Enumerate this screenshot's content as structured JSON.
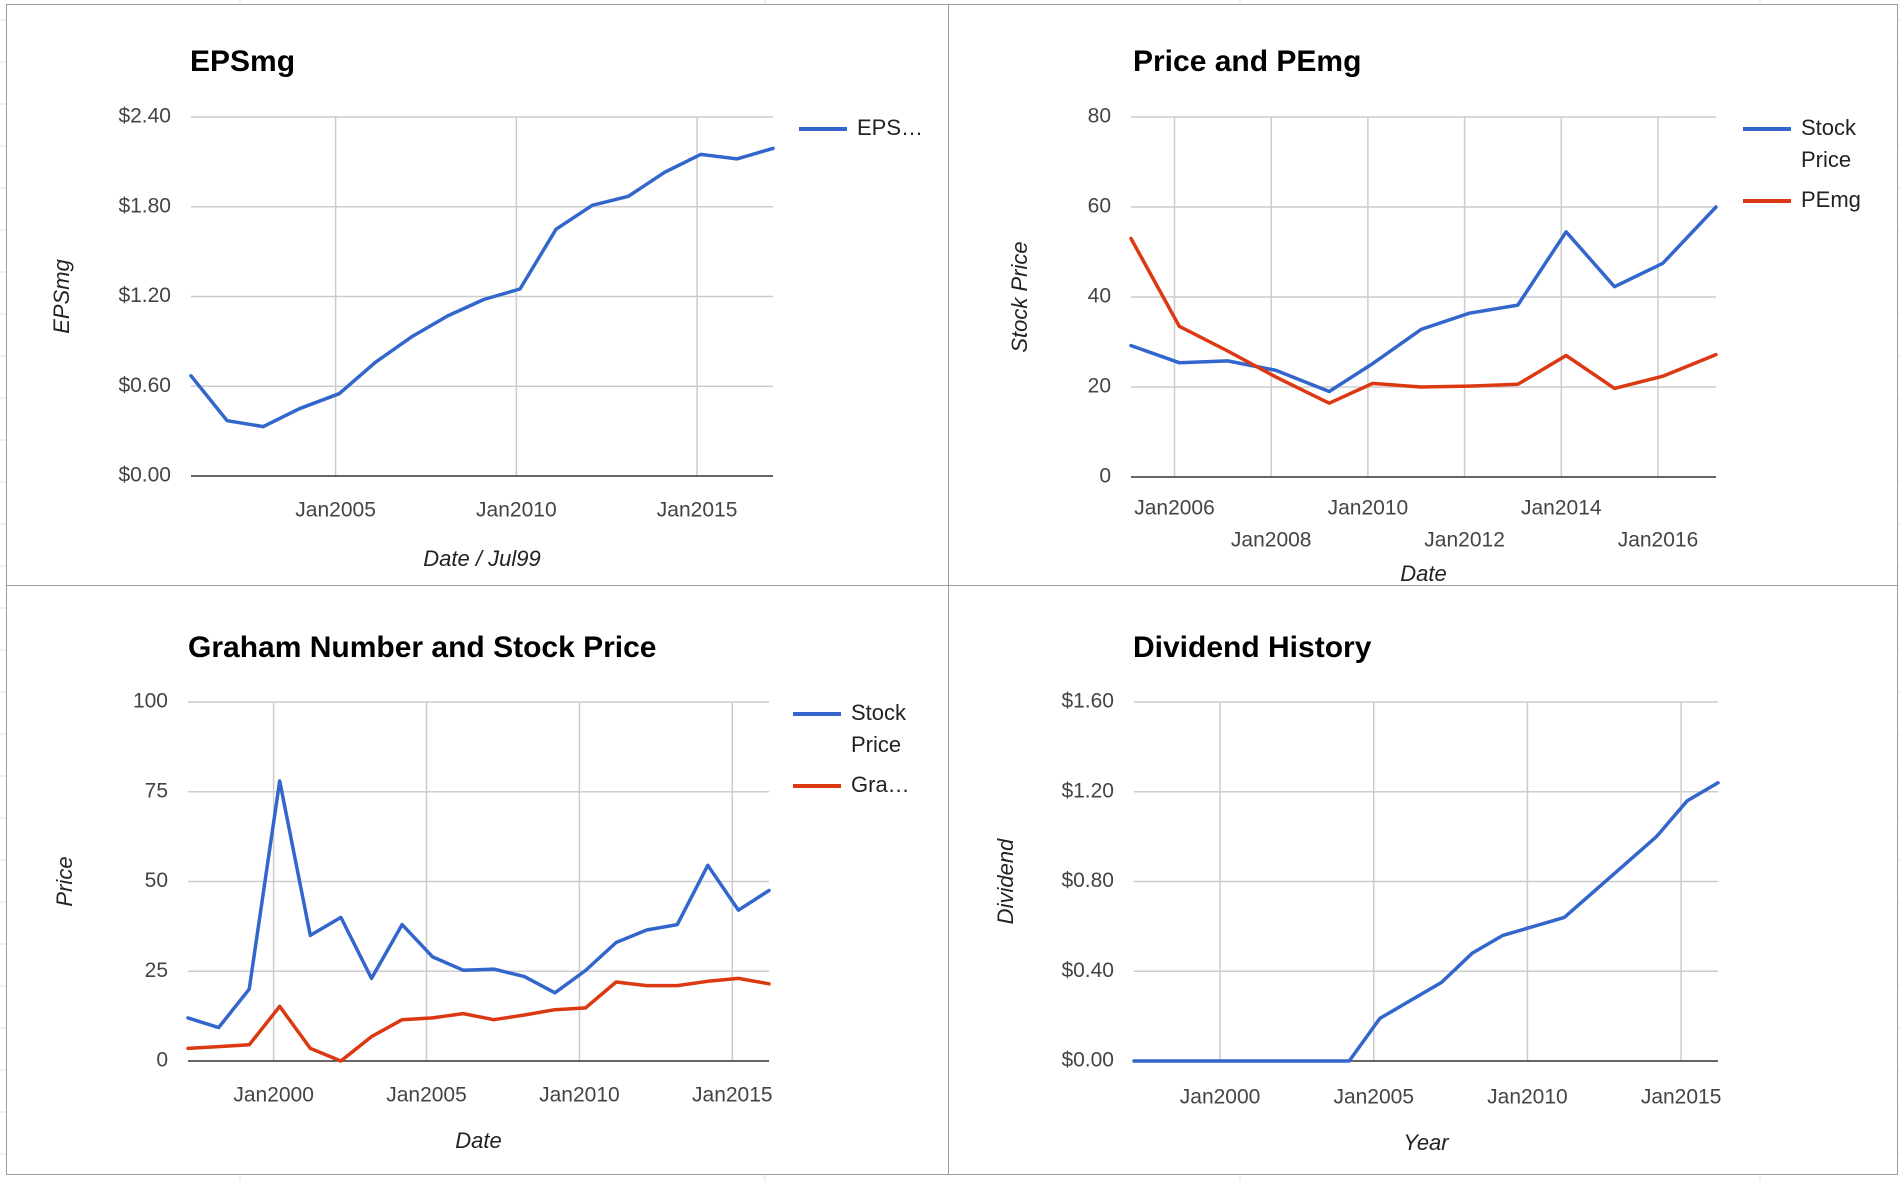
{
  "colors": {
    "blue": "#3366cc",
    "red": "#dc3912",
    "grid": "#cccccc",
    "baseline": "#333333"
  },
  "chart_data": [
    {
      "id": "epsmg",
      "type": "line",
      "title": "EPSmg",
      "xlabel": "Date / Jul99",
      "ylabel": "EPSmg",
      "xlim": [
        2001.0,
        2017.1
      ],
      "ylim": [
        0,
        2.4
      ],
      "yticks": [
        0,
        0.6,
        1.2,
        1.8,
        2.4
      ],
      "ytick_labels": [
        "$0.00",
        "$0.60",
        "$1.20",
        "$1.80",
        "$2.40"
      ],
      "xticks": [
        2005,
        2010,
        2015
      ],
      "xtick_labels": [
        "Jan2005",
        "Jan2010",
        "Jan2015"
      ],
      "legend": "right",
      "legend_entries": [
        "EPS…"
      ],
      "series": [
        {
          "name": "EPSmg",
          "color": "#3366cc",
          "x": [
            2001.0,
            2002.0,
            2003.0,
            2004.0,
            2005.1,
            2006.1,
            2007.1,
            2008.1,
            2009.1,
            2010.1,
            2011.1,
            2012.1,
            2013.1,
            2014.1,
            2015.1,
            2016.1,
            2017.1
          ],
          "y": [
            0.67,
            0.37,
            0.33,
            0.45,
            0.55,
            0.76,
            0.93,
            1.07,
            1.18,
            1.25,
            1.65,
            1.81,
            1.87,
            2.03,
            2.15,
            2.12,
            2.19
          ]
        }
      ]
    },
    {
      "id": "price-pemg",
      "type": "line",
      "title": "Price and PEmg",
      "xlabel": "Date",
      "ylabel": "Stock Price",
      "xlim": [
        2005.1,
        2017.2
      ],
      "ylim": [
        0,
        80
      ],
      "yticks": [
        0,
        20,
        40,
        60,
        80
      ],
      "ytick_labels": [
        "0",
        "20",
        "40",
        "60",
        "80"
      ],
      "xticks": [
        2006,
        2008,
        2010,
        2012,
        2014,
        2016
      ],
      "xtick_labels": [
        "Jan2006",
        "Jan2008",
        "Jan2010",
        "Jan2012",
        "Jan2014",
        "Jan2016"
      ],
      "legend": "right",
      "legend_entries": [
        [
          "Stock",
          "Price"
        ],
        [
          "PEmg"
        ]
      ],
      "series": [
        {
          "name": "Stock Price",
          "color": "#3366cc",
          "x": [
            2005.1,
            2006.1,
            2007.1,
            2008.1,
            2009.2,
            2010.1,
            2011.1,
            2012.1,
            2013.1,
            2014.1,
            2015.1,
            2016.1,
            2017.2
          ],
          "y": [
            29.2,
            25.4,
            25.8,
            23.7,
            19.0,
            25.2,
            32.8,
            36.4,
            38.2,
            54.5,
            42.3,
            47.5,
            60.0
          ]
        },
        {
          "name": "PEmg",
          "color": "#dc3912",
          "x": [
            2005.1,
            2006.1,
            2007.1,
            2008.1,
            2009.2,
            2010.1,
            2011.1,
            2012.1,
            2013.1,
            2014.1,
            2015.1,
            2016.1,
            2017.2
          ],
          "y": [
            53.0,
            33.5,
            28.0,
            22.2,
            16.4,
            20.8,
            20.0,
            20.2,
            20.6,
            27.0,
            19.7,
            22.4,
            27.2
          ]
        }
      ]
    },
    {
      "id": "graham",
      "type": "line",
      "title": "Graham Number and Stock Price",
      "xlabel": "Date",
      "ylabel": "Price",
      "xlim": [
        1997.2,
        2016.2
      ],
      "ylim": [
        0,
        100
      ],
      "yticks": [
        0,
        25,
        50,
        75,
        100
      ],
      "ytick_labels": [
        "0",
        "25",
        "50",
        "75",
        "100"
      ],
      "xticks": [
        2000,
        2005,
        2010,
        2015
      ],
      "xtick_labels": [
        "Jan2000",
        "Jan2005",
        "Jan2010",
        "Jan2015"
      ],
      "legend": "right",
      "legend_entries": [
        [
          "Stock",
          "Price"
        ],
        [
          "Gra…"
        ]
      ],
      "series": [
        {
          "name": "Stock Price",
          "color": "#3366cc",
          "x": [
            1997.2,
            1998.2,
            1999.2,
            2000.2,
            2001.2,
            2002.2,
            2003.2,
            2004.2,
            2005.2,
            2006.2,
            2007.2,
            2008.2,
            2009.2,
            2010.2,
            2011.2,
            2012.2,
            2013.2,
            2014.2,
            2015.2,
            2016.2
          ],
          "y": [
            12.0,
            9.3,
            20.0,
            78.0,
            35.0,
            40.0,
            23.0,
            38.0,
            29.0,
            25.3,
            25.6,
            23.5,
            19.0,
            25.2,
            33.0,
            36.5,
            38.0,
            54.5,
            42.0,
            47.5
          ]
        },
        {
          "name": "Graham Number",
          "color": "#dc3912",
          "x": [
            1997.2,
            1998.2,
            1999.2,
            2000.2,
            2001.2,
            2002.2,
            2003.2,
            2004.2,
            2005.2,
            2006.2,
            2007.2,
            2008.2,
            2009.2,
            2010.2,
            2011.2,
            2012.2,
            2013.2,
            2014.2,
            2015.2,
            2016.2
          ],
          "y": [
            3.5,
            4.0,
            4.5,
            15.2,
            3.5,
            0.0,
            6.8,
            11.5,
            12.0,
            13.2,
            11.5,
            12.8,
            14.3,
            14.8,
            22.0,
            21.0,
            21.0,
            22.2,
            23.0,
            21.5
          ]
        }
      ]
    },
    {
      "id": "dividend",
      "type": "line",
      "title": "Dividend History",
      "xlabel": "Year",
      "ylabel": "Dividend",
      "xlim": [
        1997.2,
        2016.2
      ],
      "ylim": [
        0,
        1.6
      ],
      "yticks": [
        0,
        0.4,
        0.8,
        1.2,
        1.6
      ],
      "ytick_labels": [
        "$0.00",
        "$0.40",
        "$0.80",
        "$1.20",
        "$1.60"
      ],
      "xticks": [
        2000,
        2005,
        2010,
        2015
      ],
      "xtick_labels": [
        "Jan2000",
        "Jan2005",
        "Jan2010",
        "Jan2015"
      ],
      "legend": "none",
      "legend_entries": [],
      "series": [
        {
          "name": "Dividend",
          "color": "#3366cc",
          "x": [
            1997.2,
            1998.2,
            1999.2,
            2000.2,
            2001.2,
            2002.2,
            2003.2,
            2004.2,
            2005.2,
            2006.2,
            2007.2,
            2008.2,
            2009.2,
            2010.2,
            2011.2,
            2012.2,
            2013.2,
            2014.2,
            2015.2,
            2016.2
          ],
          "y": [
            0,
            0,
            0,
            0,
            0,
            0,
            0,
            0,
            0.19,
            0.27,
            0.35,
            0.48,
            0.56,
            0.6,
            0.64,
            0.76,
            0.88,
            1.0,
            1.16,
            1.24
          ]
        }
      ]
    }
  ]
}
